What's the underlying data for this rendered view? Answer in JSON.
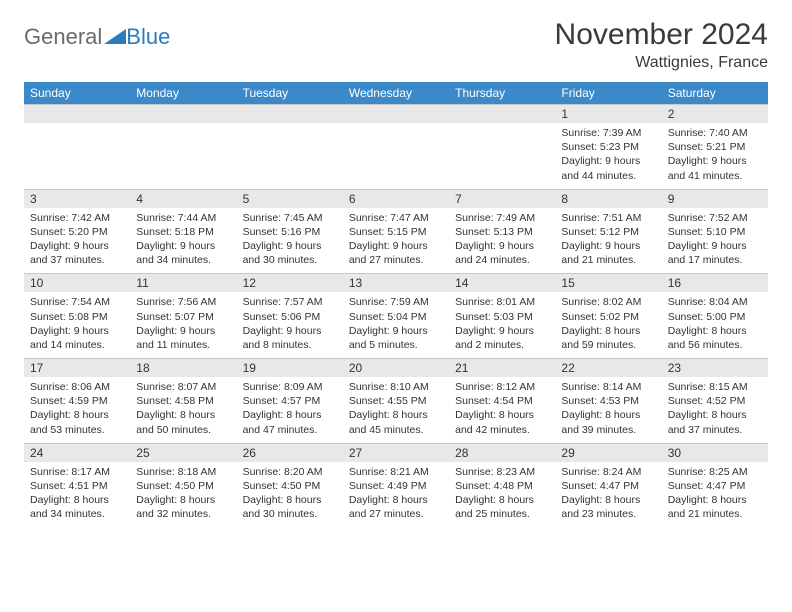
{
  "logo": {
    "general": "General",
    "blue": "Blue"
  },
  "title": {
    "month": "November 2024",
    "location": "Wattignies, France"
  },
  "calendar": {
    "day_headers": [
      "Sunday",
      "Monday",
      "Tuesday",
      "Wednesday",
      "Thursday",
      "Friday",
      "Saturday"
    ],
    "colors": {
      "header_bg": "#3b89c9",
      "daynum_bg": "#e8e8e8",
      "text": "#333333",
      "brand_blue": "#2b7bbf",
      "brand_gray": "#6b6b6b"
    },
    "weeks": [
      {
        "nums": [
          "",
          "",
          "",
          "",
          "",
          "1",
          "2"
        ],
        "cells": [
          {},
          {},
          {},
          {},
          {},
          {
            "sunrise": "Sunrise: 7:39 AM",
            "sunset": "Sunset: 5:23 PM",
            "day1": "Daylight: 9 hours",
            "day2": "and 44 minutes."
          },
          {
            "sunrise": "Sunrise: 7:40 AM",
            "sunset": "Sunset: 5:21 PM",
            "day1": "Daylight: 9 hours",
            "day2": "and 41 minutes."
          }
        ]
      },
      {
        "nums": [
          "3",
          "4",
          "5",
          "6",
          "7",
          "8",
          "9"
        ],
        "cells": [
          {
            "sunrise": "Sunrise: 7:42 AM",
            "sunset": "Sunset: 5:20 PM",
            "day1": "Daylight: 9 hours",
            "day2": "and 37 minutes."
          },
          {
            "sunrise": "Sunrise: 7:44 AM",
            "sunset": "Sunset: 5:18 PM",
            "day1": "Daylight: 9 hours",
            "day2": "and 34 minutes."
          },
          {
            "sunrise": "Sunrise: 7:45 AM",
            "sunset": "Sunset: 5:16 PM",
            "day1": "Daylight: 9 hours",
            "day2": "and 30 minutes."
          },
          {
            "sunrise": "Sunrise: 7:47 AM",
            "sunset": "Sunset: 5:15 PM",
            "day1": "Daylight: 9 hours",
            "day2": "and 27 minutes."
          },
          {
            "sunrise": "Sunrise: 7:49 AM",
            "sunset": "Sunset: 5:13 PM",
            "day1": "Daylight: 9 hours",
            "day2": "and 24 minutes."
          },
          {
            "sunrise": "Sunrise: 7:51 AM",
            "sunset": "Sunset: 5:12 PM",
            "day1": "Daylight: 9 hours",
            "day2": "and 21 minutes."
          },
          {
            "sunrise": "Sunrise: 7:52 AM",
            "sunset": "Sunset: 5:10 PM",
            "day1": "Daylight: 9 hours",
            "day2": "and 17 minutes."
          }
        ]
      },
      {
        "nums": [
          "10",
          "11",
          "12",
          "13",
          "14",
          "15",
          "16"
        ],
        "cells": [
          {
            "sunrise": "Sunrise: 7:54 AM",
            "sunset": "Sunset: 5:08 PM",
            "day1": "Daylight: 9 hours",
            "day2": "and 14 minutes."
          },
          {
            "sunrise": "Sunrise: 7:56 AM",
            "sunset": "Sunset: 5:07 PM",
            "day1": "Daylight: 9 hours",
            "day2": "and 11 minutes."
          },
          {
            "sunrise": "Sunrise: 7:57 AM",
            "sunset": "Sunset: 5:06 PM",
            "day1": "Daylight: 9 hours",
            "day2": "and 8 minutes."
          },
          {
            "sunrise": "Sunrise: 7:59 AM",
            "sunset": "Sunset: 5:04 PM",
            "day1": "Daylight: 9 hours",
            "day2": "and 5 minutes."
          },
          {
            "sunrise": "Sunrise: 8:01 AM",
            "sunset": "Sunset: 5:03 PM",
            "day1": "Daylight: 9 hours",
            "day2": "and 2 minutes."
          },
          {
            "sunrise": "Sunrise: 8:02 AM",
            "sunset": "Sunset: 5:02 PM",
            "day1": "Daylight: 8 hours",
            "day2": "and 59 minutes."
          },
          {
            "sunrise": "Sunrise: 8:04 AM",
            "sunset": "Sunset: 5:00 PM",
            "day1": "Daylight: 8 hours",
            "day2": "and 56 minutes."
          }
        ]
      },
      {
        "nums": [
          "17",
          "18",
          "19",
          "20",
          "21",
          "22",
          "23"
        ],
        "cells": [
          {
            "sunrise": "Sunrise: 8:06 AM",
            "sunset": "Sunset: 4:59 PM",
            "day1": "Daylight: 8 hours",
            "day2": "and 53 minutes."
          },
          {
            "sunrise": "Sunrise: 8:07 AM",
            "sunset": "Sunset: 4:58 PM",
            "day1": "Daylight: 8 hours",
            "day2": "and 50 minutes."
          },
          {
            "sunrise": "Sunrise: 8:09 AM",
            "sunset": "Sunset: 4:57 PM",
            "day1": "Daylight: 8 hours",
            "day2": "and 47 minutes."
          },
          {
            "sunrise": "Sunrise: 8:10 AM",
            "sunset": "Sunset: 4:55 PM",
            "day1": "Daylight: 8 hours",
            "day2": "and 45 minutes."
          },
          {
            "sunrise": "Sunrise: 8:12 AM",
            "sunset": "Sunset: 4:54 PM",
            "day1": "Daylight: 8 hours",
            "day2": "and 42 minutes."
          },
          {
            "sunrise": "Sunrise: 8:14 AM",
            "sunset": "Sunset: 4:53 PM",
            "day1": "Daylight: 8 hours",
            "day2": "and 39 minutes."
          },
          {
            "sunrise": "Sunrise: 8:15 AM",
            "sunset": "Sunset: 4:52 PM",
            "day1": "Daylight: 8 hours",
            "day2": "and 37 minutes."
          }
        ]
      },
      {
        "nums": [
          "24",
          "25",
          "26",
          "27",
          "28",
          "29",
          "30"
        ],
        "cells": [
          {
            "sunrise": "Sunrise: 8:17 AM",
            "sunset": "Sunset: 4:51 PM",
            "day1": "Daylight: 8 hours",
            "day2": "and 34 minutes."
          },
          {
            "sunrise": "Sunrise: 8:18 AM",
            "sunset": "Sunset: 4:50 PM",
            "day1": "Daylight: 8 hours",
            "day2": "and 32 minutes."
          },
          {
            "sunrise": "Sunrise: 8:20 AM",
            "sunset": "Sunset: 4:50 PM",
            "day1": "Daylight: 8 hours",
            "day2": "and 30 minutes."
          },
          {
            "sunrise": "Sunrise: 8:21 AM",
            "sunset": "Sunset: 4:49 PM",
            "day1": "Daylight: 8 hours",
            "day2": "and 27 minutes."
          },
          {
            "sunrise": "Sunrise: 8:23 AM",
            "sunset": "Sunset: 4:48 PM",
            "day1": "Daylight: 8 hours",
            "day2": "and 25 minutes."
          },
          {
            "sunrise": "Sunrise: 8:24 AM",
            "sunset": "Sunset: 4:47 PM",
            "day1": "Daylight: 8 hours",
            "day2": "and 23 minutes."
          },
          {
            "sunrise": "Sunrise: 8:25 AM",
            "sunset": "Sunset: 4:47 PM",
            "day1": "Daylight: 8 hours",
            "day2": "and 21 minutes."
          }
        ]
      }
    ]
  }
}
